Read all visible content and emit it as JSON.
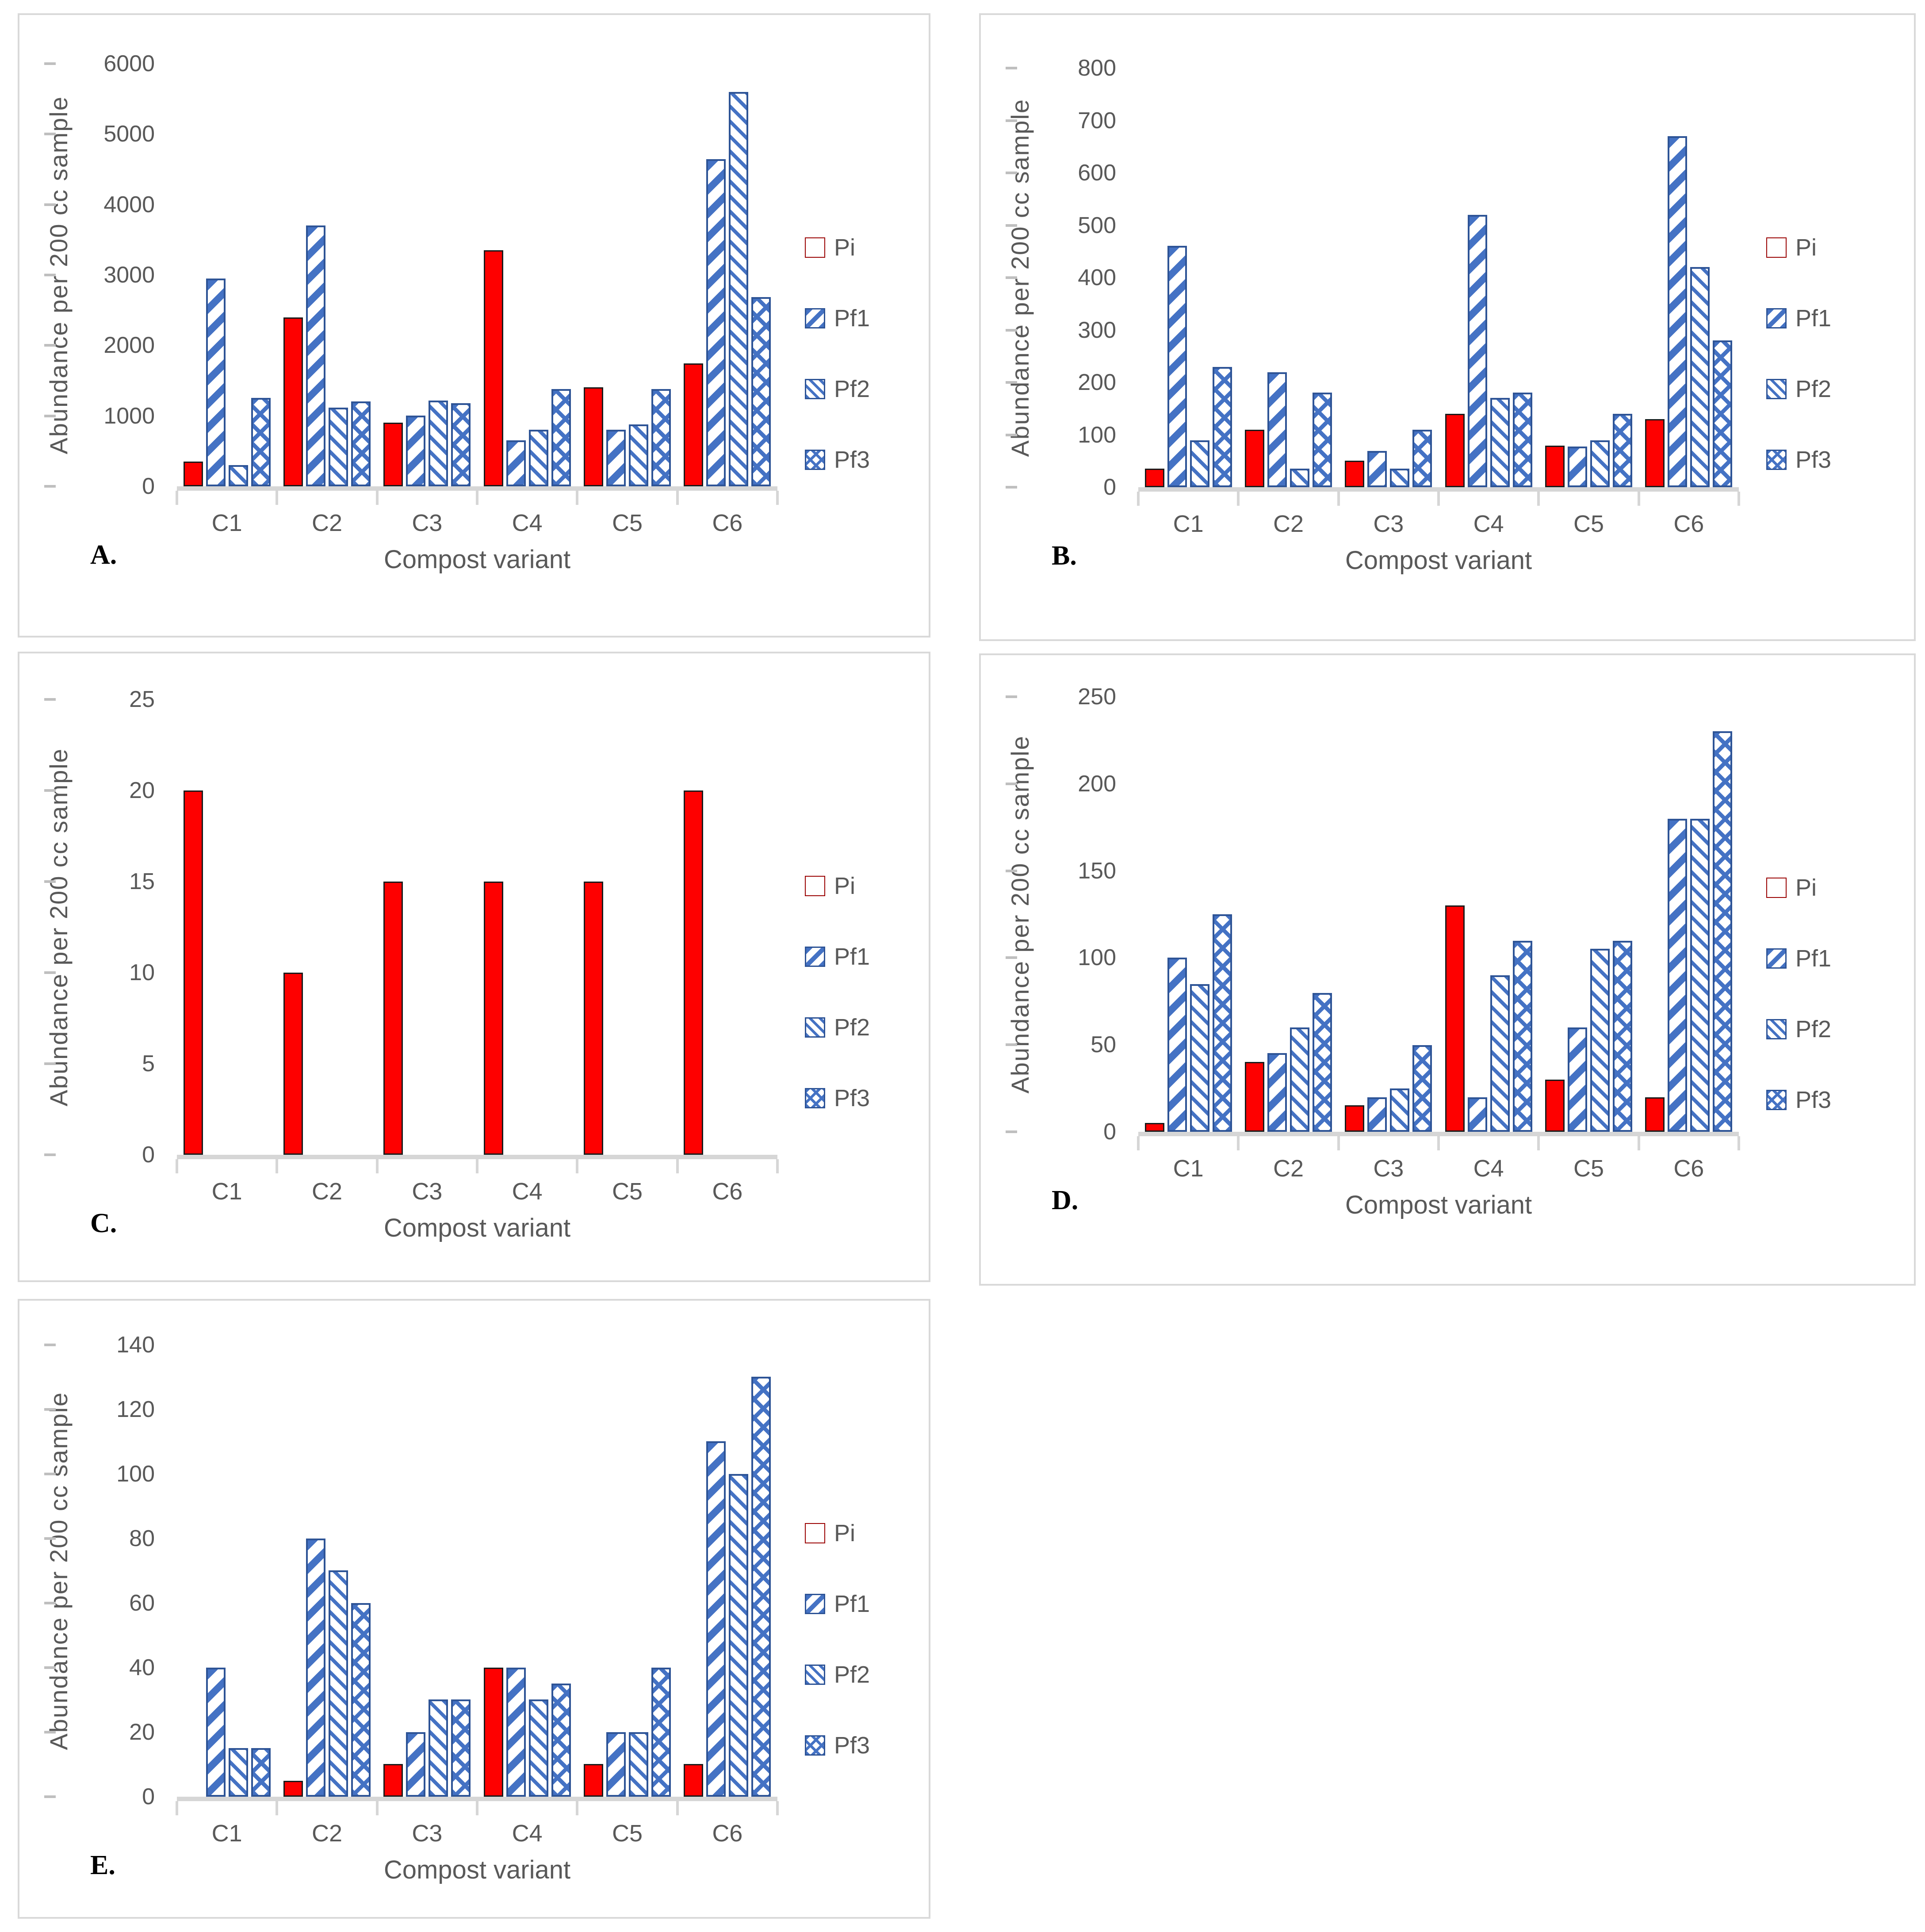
{
  "colors": {
    "pi_red": "#FE0000",
    "pattern_blue": "#4472C4",
    "bar_outline": "#2E5496",
    "axis_text": "#595959",
    "axis_line": "#D6D6D6",
    "panel_border": "#D9D9D9",
    "background": "#FFFFFF"
  },
  "legend": {
    "position": "right",
    "items": [
      {
        "label": "Pi",
        "pattern": "solid-red"
      },
      {
        "label": "Pf1",
        "pattern": "diag-wide"
      },
      {
        "label": "Pf2",
        "pattern": "diag-thin"
      },
      {
        "label": "Pf3",
        "pattern": "crosshatch"
      }
    ]
  },
  "chart_data": [
    {
      "type": "bar",
      "panel_label": "A.",
      "title": "",
      "ylabel": "Abundance per 200 cc sample",
      "xlabel": "Compost variant",
      "ylim": [
        0,
        6000
      ],
      "ystep": 1000,
      "yticks": [
        "0",
        "1000",
        "2000",
        "3000",
        "4000",
        "5000",
        "6000"
      ],
      "grid": false,
      "legend_position": "right",
      "categories": [
        "C1",
        "C2",
        "C3",
        "C4",
        "C5",
        "C6"
      ],
      "series": [
        {
          "name": "Pi",
          "values": [
            350,
            2400,
            900,
            3350,
            1400,
            1750
          ]
        },
        {
          "name": "Pf1",
          "values": [
            2950,
            3700,
            1000,
            650,
            800,
            4650
          ]
        },
        {
          "name": "Pf2",
          "values": [
            300,
            1120,
            1220,
            800,
            880,
            5600
          ]
        },
        {
          "name": "Pf3",
          "values": [
            1250,
            1200,
            1180,
            1380,
            1380,
            2680
          ]
        }
      ]
    },
    {
      "type": "bar",
      "panel_label": "B.",
      "title": "",
      "ylabel": "Abundance per 200 cc sample",
      "xlabel": "Compost variant",
      "ylim": [
        0,
        800
      ],
      "ystep": 100,
      "yticks": [
        "0",
        "100",
        "200",
        "300",
        "400",
        "500",
        "600",
        "700",
        "800"
      ],
      "grid": false,
      "legend_position": "right",
      "categories": [
        "C1",
        "C2",
        "C3",
        "C4",
        "C5",
        "C6"
      ],
      "series": [
        {
          "name": "Pi",
          "values": [
            35,
            110,
            50,
            140,
            80,
            130
          ]
        },
        {
          "name": "Pf1",
          "values": [
            460,
            220,
            70,
            520,
            78,
            670
          ]
        },
        {
          "name": "Pf2",
          "values": [
            90,
            35,
            35,
            170,
            90,
            420
          ]
        },
        {
          "name": "Pf3",
          "values": [
            230,
            180,
            110,
            180,
            140,
            280
          ]
        }
      ]
    },
    {
      "type": "bar",
      "panel_label": "C.",
      "title": "",
      "ylabel": "Abundance per 200 cc sample",
      "xlabel": "Compost variant",
      "ylim": [
        0,
        25
      ],
      "ystep": 5,
      "yticks": [
        "0",
        "5",
        "10",
        "15",
        "20",
        "25"
      ],
      "grid": false,
      "legend_position": "right",
      "categories": [
        "C1",
        "C2",
        "C3",
        "C4",
        "C5",
        "C6"
      ],
      "series": [
        {
          "name": "Pi",
          "values": [
            20,
            10,
            15,
            15,
            15,
            20
          ]
        },
        {
          "name": "Pf1",
          "values": [
            0,
            0,
            0,
            0,
            0,
            0
          ]
        },
        {
          "name": "Pf2",
          "values": [
            0,
            0,
            0,
            0,
            0,
            0
          ]
        },
        {
          "name": "Pf3",
          "values": [
            0,
            0,
            0,
            0,
            0,
            0
          ]
        }
      ]
    },
    {
      "type": "bar",
      "panel_label": "D.",
      "title": "",
      "ylabel": "Abundance per 200 cc sample",
      "xlabel": "Compost variant",
      "ylim": [
        0,
        250
      ],
      "ystep": 50,
      "yticks": [
        "0",
        "50",
        "100",
        "150",
        "200",
        "250"
      ],
      "grid": false,
      "legend_position": "right",
      "categories": [
        "C1",
        "C2",
        "C3",
        "C4",
        "C5",
        "C6"
      ],
      "series": [
        {
          "name": "Pi",
          "values": [
            5,
            40,
            15,
            130,
            30,
            20
          ]
        },
        {
          "name": "Pf1",
          "values": [
            100,
            45,
            20,
            20,
            60,
            180
          ]
        },
        {
          "name": "Pf2",
          "values": [
            85,
            60,
            25,
            90,
            105,
            180
          ]
        },
        {
          "name": "Pf3",
          "values": [
            125,
            80,
            50,
            110,
            110,
            230
          ]
        }
      ]
    },
    {
      "type": "bar",
      "panel_label": "E.",
      "title": "",
      "ylabel": "Abundance per 200 cc sample",
      "xlabel": "Compost variant",
      "ylim": [
        0,
        140
      ],
      "ystep": 20,
      "yticks": [
        "0",
        "20",
        "40",
        "60",
        "80",
        "100",
        "120",
        "140"
      ],
      "grid": false,
      "legend_position": "right",
      "categories": [
        "C1",
        "C2",
        "C3",
        "C4",
        "C5",
        "C6"
      ],
      "series": [
        {
          "name": "Pi",
          "values": [
            0,
            5,
            10,
            40,
            10,
            10
          ]
        },
        {
          "name": "Pf1",
          "values": [
            40,
            80,
            20,
            40,
            20,
            110
          ]
        },
        {
          "name": "Pf2",
          "values": [
            15,
            70,
            30,
            30,
            20,
            100
          ]
        },
        {
          "name": "Pf3",
          "values": [
            15,
            60,
            30,
            35,
            40,
            130
          ]
        }
      ]
    }
  ]
}
